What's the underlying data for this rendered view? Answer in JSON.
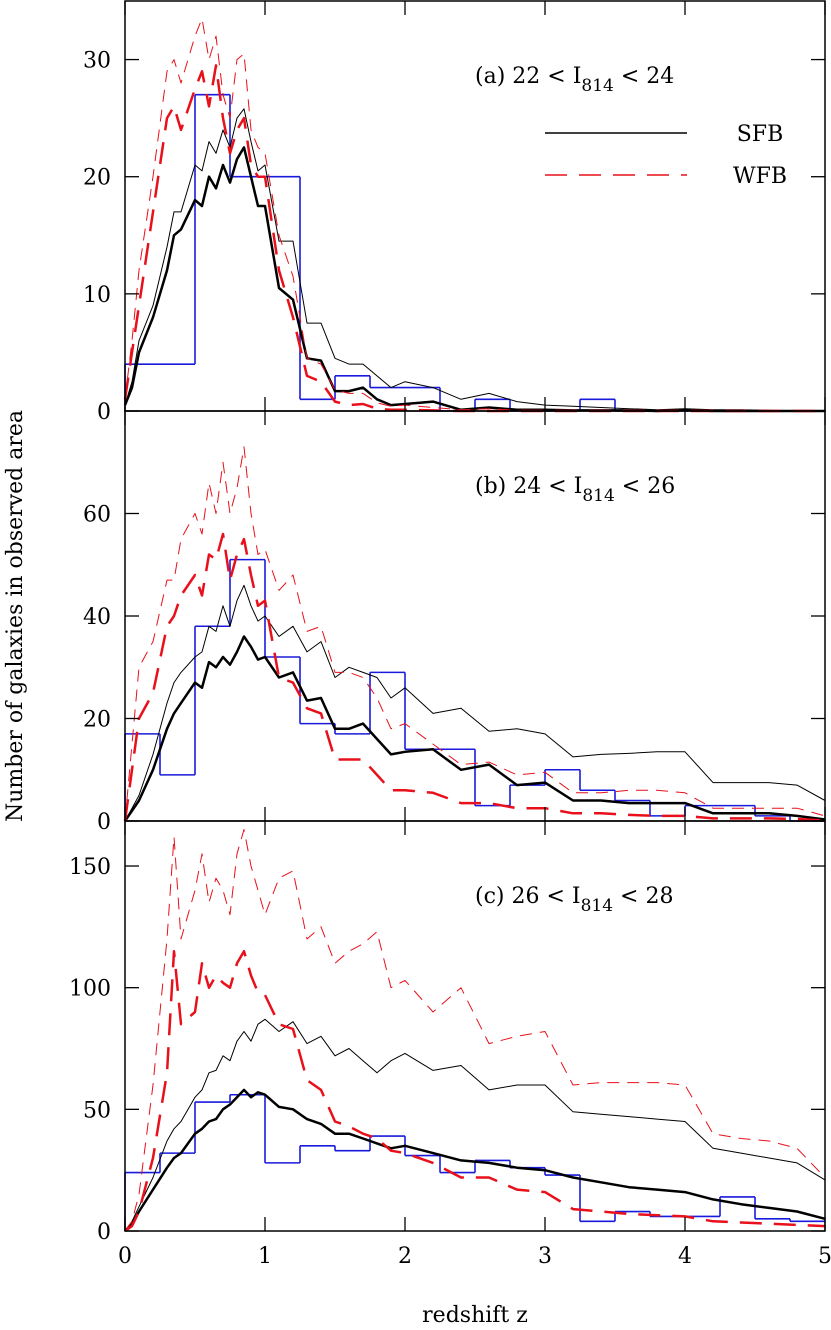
{
  "chart_data": [
    {
      "type": "line",
      "title_parts": [
        "(a) 22 < I",
        "814",
        " < 24"
      ],
      "x": [
        0,
        0.05,
        0.1,
        0.2,
        0.3,
        0.35,
        0.4,
        0.5,
        0.55,
        0.6,
        0.65,
        0.7,
        0.75,
        0.8,
        0.85,
        0.9,
        0.95,
        1.0,
        1.1,
        1.2,
        1.3,
        1.4,
        1.5,
        1.6,
        1.7,
        1.8,
        1.9,
        2.0,
        2.2,
        2.4,
        2.6,
        2.8,
        3.0,
        3.2,
        3.4,
        3.6,
        3.8,
        4.0,
        4.2,
        4.4,
        4.6,
        4.8,
        5.0
      ],
      "series": [
        {
          "name": "SFB",
          "color": "#000000",
          "linewidth": 2.5,
          "style": "solid",
          "values": [
            0.5,
            2,
            5,
            8,
            12,
            15,
            15.5,
            18,
            17.5,
            20,
            19,
            21,
            19.5,
            21.5,
            22.5,
            20,
            17.5,
            17.5,
            10.5,
            9.5,
            4.5,
            4.3,
            1.7,
            1.7,
            2,
            1,
            0.5,
            0.6,
            0.8,
            0.1,
            0.3,
            0.1,
            0.1,
            0.05,
            0.05,
            0.05,
            0,
            0.1,
            0,
            0,
            0,
            0,
            0
          ]
        },
        {
          "color": "#000000",
          "linewidth": 1,
          "style": "solid",
          "values": [
            0.5,
            2.5,
            6,
            9,
            14,
            17,
            17,
            21,
            20.5,
            23,
            22,
            24,
            22.5,
            25,
            25.8,
            23,
            20.5,
            21,
            14.5,
            14.5,
            7.5,
            7.5,
            4.5,
            4,
            4,
            3,
            2,
            2.5,
            2,
            1,
            1.5,
            0.8,
            0.5,
            0.4,
            0.3,
            0.2,
            0.1,
            0.2,
            0.1,
            0.1,
            0.05,
            0,
            0
          ]
        },
        {
          "name": "WFB",
          "color": "#e8101a",
          "linewidth": 2.5,
          "style": "dashed",
          "values": [
            1,
            5,
            9,
            17,
            25,
            26,
            24,
            27.5,
            29,
            26,
            29.5,
            25,
            22,
            24,
            25,
            21,
            20,
            20,
            12,
            8,
            3,
            2.5,
            0.8,
            0.5,
            0.6,
            0.2,
            0.1,
            0.1,
            0.05,
            0,
            0,
            0,
            0,
            0,
            0,
            0,
            0,
            0,
            0,
            0,
            0,
            0,
            0
          ]
        },
        {
          "color": "#e8101a",
          "linewidth": 1,
          "style": "dashed",
          "values": [
            1,
            6,
            12,
            20,
            29,
            30,
            28,
            32,
            33.5,
            30,
            32,
            27,
            25,
            30,
            30.5,
            24,
            22.5,
            22,
            15,
            11.5,
            4.5,
            4,
            1.8,
            1.5,
            1.5,
            0.7,
            0.4,
            0.5,
            0.3,
            0.1,
            0.2,
            0.05,
            0,
            0,
            0,
            0,
            0,
            0,
            0,
            0,
            0,
            0,
            0
          ]
        }
      ],
      "histogram": {
        "color": "#1a1adc",
        "bins": [
          0,
          0.25,
          0.5,
          0.75,
          1,
          1.25,
          1.5,
          1.75,
          2,
          2.25,
          2.5,
          2.75,
          3,
          3.25,
          3.5,
          3.75,
          4,
          4.25,
          4.5,
          4.75,
          5
        ],
        "counts": [
          4,
          4,
          27,
          20,
          20,
          1,
          3,
          2,
          2,
          0,
          1,
          0,
          0,
          1,
          0,
          0,
          0,
          0,
          0,
          0
        ]
      },
      "legend": "upper right",
      "xlim": [
        0,
        5
      ],
      "xticks": [
        0,
        1,
        2,
        3,
        4,
        5
      ],
      "ylim": [
        0,
        35
      ],
      "yticks": [
        0,
        10,
        20,
        30
      ]
    },
    {
      "type": "line",
      "title_parts": [
        "(b) 24 < I",
        "814",
        " < 26"
      ],
      "ylabel": "Number of galaxies in observed area",
      "x": [
        0,
        0.05,
        0.1,
        0.2,
        0.3,
        0.35,
        0.4,
        0.5,
        0.55,
        0.6,
        0.65,
        0.7,
        0.75,
        0.8,
        0.85,
        0.9,
        0.95,
        1.0,
        1.1,
        1.2,
        1.3,
        1.4,
        1.5,
        1.6,
        1.7,
        1.8,
        1.9,
        2.0,
        2.2,
        2.4,
        2.6,
        2.8,
        3.0,
        3.2,
        3.4,
        3.6,
        3.8,
        4.0,
        4.2,
        4.4,
        4.6,
        4.8,
        5.0
      ],
      "series": [
        {
          "color": "#000000",
          "linewidth": 2.5,
          "style": "solid",
          "values": [
            0,
            2,
            4,
            10,
            18,
            21,
            23,
            27,
            26,
            31,
            30,
            32,
            30.5,
            33,
            36,
            34,
            31.5,
            32,
            28,
            29,
            23.5,
            24,
            18,
            18,
            19,
            16,
            13,
            13.5,
            14,
            10,
            11,
            7,
            7.5,
            4,
            4,
            3.5,
            3.5,
            3.5,
            1.5,
            1.5,
            1.5,
            1,
            0.3
          ]
        },
        {
          "color": "#000000",
          "linewidth": 1,
          "style": "solid",
          "values": [
            0,
            2.5,
            5,
            13,
            23,
            27,
            29,
            32,
            33,
            38,
            37,
            42,
            38,
            43,
            46,
            42,
            39,
            40,
            36,
            38,
            33,
            35,
            28,
            30,
            29,
            28,
            24,
            26,
            21,
            22,
            17.5,
            18,
            17,
            12.5,
            13,
            13.2,
            13.5,
            13.5,
            7.5,
            7.5,
            7.5,
            7,
            4
          ]
        },
        {
          "color": "#e8101a",
          "linewidth": 2.5,
          "style": "dashed",
          "values": [
            0,
            10,
            20,
            25,
            38,
            40,
            44,
            48,
            44,
            52,
            51,
            56,
            47,
            52,
            55,
            48,
            42,
            43,
            28,
            27,
            22,
            21,
            12,
            12,
            12,
            9,
            6,
            6,
            5.5,
            3.5,
            3.5,
            2.5,
            2.5,
            1.5,
            1.5,
            1.2,
            1,
            1,
            0.5,
            0.5,
            0.5,
            0.4,
            0.1
          ]
        },
        {
          "color": "#e8101a",
          "linewidth": 1,
          "style": "dashed",
          "values": [
            0,
            15,
            30,
            35,
            47,
            47,
            55,
            60,
            56,
            66,
            60,
            70,
            60,
            65,
            73,
            60,
            52,
            53,
            45,
            48,
            37,
            38,
            29,
            29,
            28,
            24,
            18,
            19,
            15,
            11,
            11.5,
            9,
            9.5,
            5.5,
            5.5,
            6,
            6,
            5.5,
            2.5,
            2.5,
            2.5,
            2.5,
            1
          ]
        }
      ],
      "histogram": {
        "color": "#1a1adc",
        "bins": [
          0,
          0.25,
          0.5,
          0.75,
          1,
          1.25,
          1.5,
          1.75,
          2,
          2.25,
          2.5,
          2.75,
          3,
          3.25,
          3.5,
          3.75,
          4,
          4.25,
          4.5,
          4.75,
          5
        ],
        "counts": [
          17,
          9,
          38,
          51,
          32,
          19,
          17,
          29,
          14,
          14,
          3,
          7,
          10,
          6,
          4,
          1,
          3,
          3,
          1,
          0
        ]
      },
      "xlim": [
        0,
        5
      ],
      "xticks": [
        0,
        1,
        2,
        3,
        4,
        5
      ],
      "ylim": [
        0,
        80
      ],
      "yticks": [
        0,
        20,
        40,
        60
      ]
    },
    {
      "type": "line",
      "title_parts": [
        "(c) 26 < I",
        "814",
        " < 28"
      ],
      "xlabel": "redshift z",
      "x": [
        0,
        0.05,
        0.1,
        0.2,
        0.3,
        0.35,
        0.4,
        0.5,
        0.55,
        0.6,
        0.65,
        0.7,
        0.75,
        0.8,
        0.85,
        0.9,
        0.95,
        1.0,
        1.1,
        1.2,
        1.3,
        1.4,
        1.5,
        1.6,
        1.7,
        1.8,
        1.9,
        2.0,
        2.2,
        2.4,
        2.6,
        2.8,
        3.0,
        3.2,
        3.4,
        3.6,
        3.8,
        4.0,
        4.2,
        4.4,
        4.6,
        4.8,
        5.0
      ],
      "series": [
        {
          "color": "#000000",
          "linewidth": 2.5,
          "style": "solid",
          "values": [
            0,
            3,
            8,
            17,
            26,
            30,
            32,
            40,
            42,
            45,
            46,
            50,
            52,
            55,
            58,
            55,
            57,
            56,
            51,
            50,
            46,
            44,
            40,
            40,
            38,
            36,
            34,
            35,
            32,
            29,
            28,
            26,
            25,
            22,
            20,
            18,
            17,
            16,
            13,
            11,
            9.5,
            8,
            5
          ]
        },
        {
          "color": "#000000",
          "linewidth": 1,
          "style": "solid",
          "values": [
            0,
            4,
            10,
            22,
            37,
            42,
            45,
            55,
            58,
            65,
            66,
            72,
            70,
            78,
            82,
            78,
            85,
            87,
            82,
            86,
            77,
            80,
            72,
            75,
            70,
            65,
            70,
            73,
            66,
            68,
            58,
            60,
            60,
            49,
            48,
            47,
            46,
            45,
            34,
            32,
            30,
            28,
            21
          ]
        },
        {
          "color": "#e8101a",
          "linewidth": 2.5,
          "style": "dashed",
          "values": [
            0,
            2,
            8,
            30,
            65,
            115,
            85,
            90,
            110,
            100,
            105,
            102,
            100,
            110,
            115,
            105,
            98,
            97,
            85,
            83,
            62,
            58,
            45,
            43,
            40,
            38,
            33,
            32,
            28,
            22,
            22,
            17,
            16,
            9,
            8,
            7,
            6.5,
            6,
            4,
            3.5,
            3,
            2.5,
            2
          ]
        },
        {
          "color": "#e8101a",
          "linewidth": 1,
          "style": "dashed",
          "values": [
            0,
            4,
            15,
            60,
            120,
            162,
            120,
            140,
            155,
            135,
            145,
            140,
            130,
            155,
            165,
            150,
            140,
            130,
            145,
            148,
            120,
            125,
            110,
            115,
            118,
            123,
            100,
            103,
            90,
            100,
            77,
            80,
            82,
            60,
            61,
            61,
            61,
            60,
            40,
            38,
            37,
            34,
            22
          ]
        }
      ],
      "histogram": {
        "color": "#1a1adc",
        "bins": [
          0,
          0.25,
          0.5,
          0.75,
          1,
          1.25,
          1.5,
          1.75,
          2,
          2.25,
          2.5,
          2.75,
          3,
          3.25,
          3.5,
          3.75,
          4,
          4.25,
          4.5,
          4.75,
          5
        ],
        "counts": [
          24,
          32,
          53,
          56,
          28,
          35,
          33,
          39,
          31,
          24,
          29,
          26,
          23,
          4,
          8,
          6,
          6,
          14,
          5,
          4
        ]
      },
      "xlim": [
        0,
        5
      ],
      "xticks": [
        0,
        1,
        2,
        3,
        4,
        5
      ],
      "ylim": [
        0,
        168.5
      ],
      "yticks": [
        0,
        50,
        100,
        150
      ]
    }
  ]
}
